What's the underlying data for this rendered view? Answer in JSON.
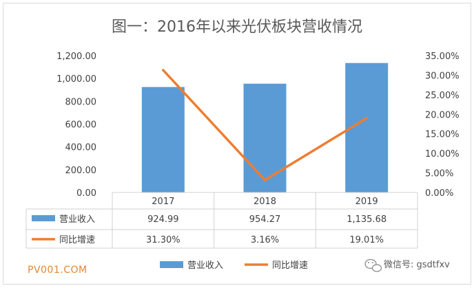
{
  "chart_data": {
    "type": "bar",
    "title": "图一：2016年以来光伏板块营收情况",
    "categories": [
      "2017",
      "2018",
      "2019"
    ],
    "series": [
      {
        "name": "营业收入",
        "type": "bar",
        "axis": "left",
        "values": [
          924.99,
          954.27,
          1135.68
        ],
        "labels": [
          "924.99",
          "954.27",
          "1,135.68"
        ],
        "color": "#5b9bd5"
      },
      {
        "name": "同比增速",
        "type": "line",
        "axis": "right",
        "values": [
          31.3,
          3.16,
          19.01
        ],
        "labels": [
          "31.30%",
          "3.16%",
          "19.01%"
        ],
        "color": "#ed7d31"
      }
    ],
    "y_left": {
      "min": 0,
      "max": 1200,
      "ticks": [
        "0.00",
        "200.00",
        "400.00",
        "600.00",
        "800.00",
        "1,000.00",
        "1,200.00"
      ]
    },
    "y_right": {
      "min": 0,
      "max": 35,
      "ticks": [
        "0.00%",
        "5.00%",
        "10.00%",
        "15.00%",
        "20.00%",
        "25.00%",
        "30.00%",
        "35.00%"
      ]
    },
    "grid": false,
    "legend": "bottom",
    "data_table": true
  },
  "watermark": "PV001.COM",
  "wechat": "微信号: gsdtfxv",
  "wechat_icon": "wechat-icon"
}
